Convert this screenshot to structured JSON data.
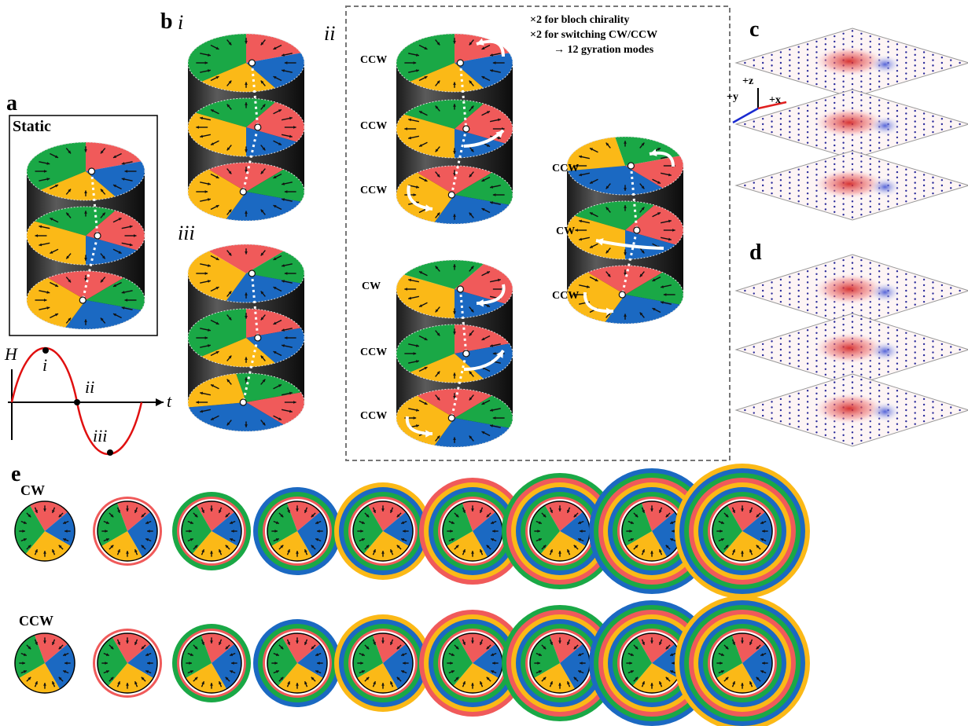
{
  "panels": {
    "a": {
      "label": "a",
      "static_label": "Static"
    },
    "b": {
      "label": "b",
      "sub_i": "i",
      "sub_ii": "ii",
      "sub_iii": "iii"
    },
    "c": {
      "label": "c",
      "axes": {
        "z": "+z",
        "y": "+y",
        "x": "+x"
      }
    },
    "d": {
      "label": "d"
    },
    "e": {
      "label": "e",
      "row_cw": "CW",
      "row_ccw": "CCW"
    }
  },
  "field_plot": {
    "y_axis": "H",
    "x_axis": "t",
    "point_i": "i",
    "point_ii": "ii",
    "point_iii": "iii"
  },
  "notes": {
    "line1": "×2 for bloch chirality",
    "line2": "×2 for switching CW/CCW",
    "line3": "→ 12 gyration modes"
  },
  "stack_labels": {
    "top": [
      "CCW",
      "CCW",
      "CCW"
    ],
    "bottom": [
      "CW",
      "CCW",
      "CCW"
    ],
    "right": [
      "CCW",
      "CW",
      "CCW"
    ]
  },
  "colors": {
    "red": "#f05a5a",
    "green": "#1aa846",
    "blue": "#1b69c2",
    "yellow": "#fbb917",
    "cylinder": "#444444",
    "curve": "#e01010"
  }
}
